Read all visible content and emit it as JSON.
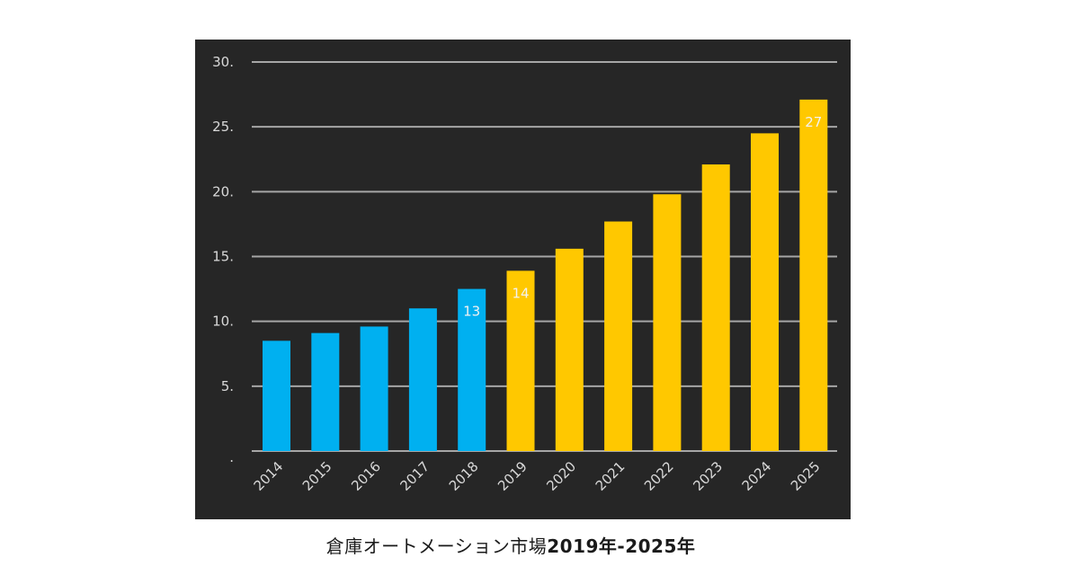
{
  "chart_data": {
    "type": "bar",
    "title": "倉庫オートメーション市場2019年-2025年",
    "title_parts": {
      "text": "倉庫オートメーション市場",
      "years": "2019年-2025年"
    },
    "xlabel": "",
    "ylabel": "",
    "categories": [
      "2014",
      "2015",
      "2016",
      "2017",
      "2018",
      "2019",
      "2020",
      "2021",
      "2022",
      "2023",
      "2024",
      "2025"
    ],
    "values": [
      8.5,
      9.1,
      9.6,
      11.0,
      12.5,
      13.9,
      15.6,
      17.7,
      19.8,
      22.1,
      24.5,
      27.1
    ],
    "series_colors": {
      "historical": "#00B0F0",
      "forecast": "#FFC800"
    },
    "bar_groups": [
      "historical",
      "historical",
      "historical",
      "historical",
      "historical",
      "forecast",
      "forecast",
      "forecast",
      "forecast",
      "forecast",
      "forecast",
      "forecast"
    ],
    "data_labels": [
      {
        "category": "2018",
        "text": "13"
      },
      {
        "category": "2019",
        "text": "14"
      },
      {
        "category": "2025",
        "text": "27"
      }
    ],
    "ylim": [
      0,
      30
    ],
    "yticks": [
      0,
      5,
      10,
      15,
      20,
      25,
      30
    ],
    "ytick_labels": [
      ".",
      "5.",
      "10.",
      "15.",
      "20.",
      "25.",
      "30."
    ],
    "grid": true,
    "legend": "none",
    "background": "#262626",
    "gridline_color": "#A6A6A6"
  }
}
